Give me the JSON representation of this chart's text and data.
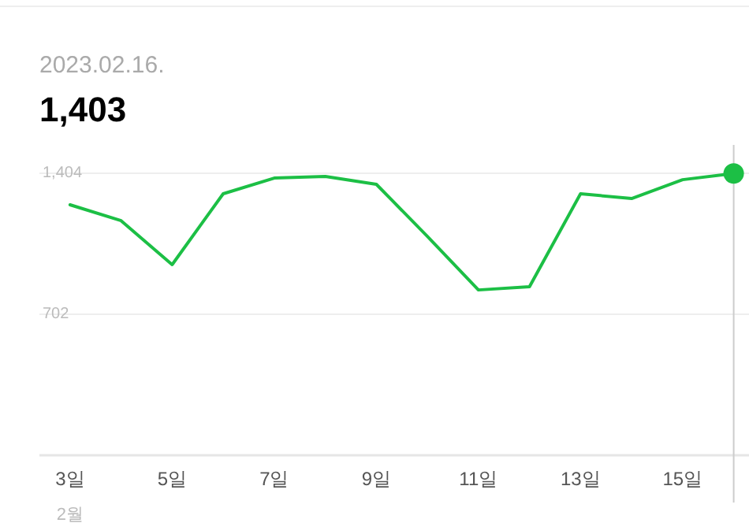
{
  "chart_data": {
    "type": "line",
    "title": "2023.02.16.",
    "subtitle": "1,403",
    "xlabel": "2월",
    "x": [
      3,
      4,
      5,
      6,
      7,
      8,
      9,
      10,
      11,
      12,
      13,
      14,
      15,
      16
    ],
    "series": [
      {
        "type": "line",
        "marker": "none",
        "color": "#1cbf45",
        "values": [
          1247,
          1168,
          949,
          1302,
          1380,
          1388,
          1349,
          1090,
          823,
          839,
          1302,
          1278,
          1372,
          1403
        ]
      },
      {
        "type": "scatter",
        "marker": "circle",
        "color": "#1cbf45",
        "x": [
          16
        ],
        "values": [
          1403
        ]
      }
    ],
    "xlim": [
      2.4,
      16.3
    ],
    "ylim": [
      0,
      1545
    ],
    "xticks": [
      {
        "value": 3,
        "label": "3일"
      },
      {
        "value": 5,
        "label": "5일"
      },
      {
        "value": 7,
        "label": "7일"
      },
      {
        "value": 9,
        "label": "9일"
      },
      {
        "value": 11,
        "label": "11일"
      },
      {
        "value": 13,
        "label": "13일"
      },
      {
        "value": 15,
        "label": "15일"
      }
    ],
    "yticks": [
      {
        "value": 0,
        "label": null
      },
      {
        "value": 702,
        "label": "702"
      },
      {
        "value": 1404,
        "label": "1,404"
      }
    ],
    "ref_lines": [
      {
        "axis": "x",
        "value": 16,
        "color": "#cccccc"
      }
    ],
    "grid": "y",
    "line_style": "solid"
  }
}
